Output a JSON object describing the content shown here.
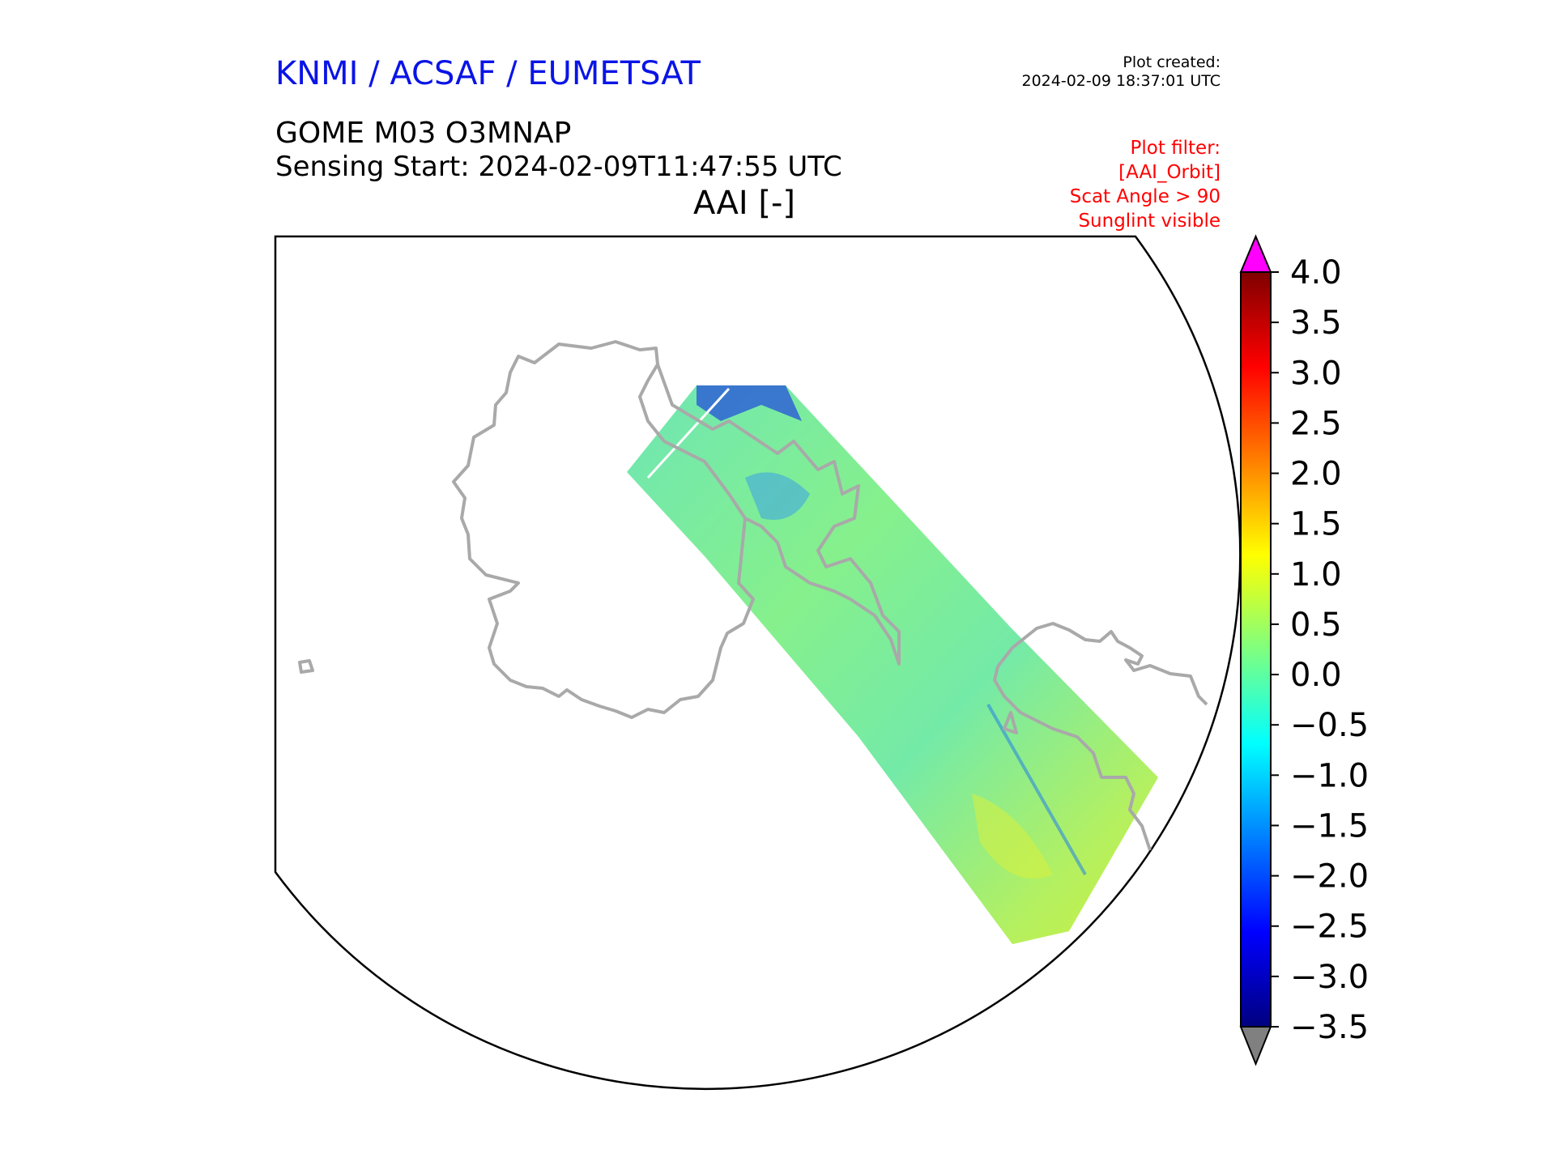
{
  "header": {
    "organization": "KNMI / ACSAF / EUMETSAT",
    "organization_color": "#0a14e6",
    "plot_created_label": "Plot created:",
    "plot_created_time": "2024-02-09 18:37:01 UTC",
    "product": "GOME M03 O3MNAP",
    "sensing_start": "Sensing Start: 2024-02-09T11:47:55 UTC",
    "quantity": "AAI [-]"
  },
  "plot_filter": {
    "color": "#ff0000",
    "lines": [
      "Plot filter:",
      "[AAI_Orbit]",
      "Scat Angle > 90",
      "Sunglint visible"
    ]
  },
  "colorbar": {
    "min": -3.5,
    "max": 4.0,
    "ticks": [
      {
        "value": 4.0,
        "label": "4.0"
      },
      {
        "value": 3.5,
        "label": "3.5"
      },
      {
        "value": 3.0,
        "label": "3.0"
      },
      {
        "value": 2.5,
        "label": "2.5"
      },
      {
        "value": 2.0,
        "label": "2.0"
      },
      {
        "value": 1.5,
        "label": "1.5"
      },
      {
        "value": 1.0,
        "label": "1.0"
      },
      {
        "value": 0.5,
        "label": "0.5"
      },
      {
        "value": 0.0,
        "label": "0.0"
      },
      {
        "value": -0.5,
        "label": "−0.5"
      },
      {
        "value": -1.0,
        "label": "−1.0"
      },
      {
        "value": -1.5,
        "label": "−1.5"
      },
      {
        "value": -2.0,
        "label": "−2.0"
      },
      {
        "value": -2.5,
        "label": "−2.5"
      },
      {
        "value": -3.0,
        "label": "−3.0"
      },
      {
        "value": -3.5,
        "label": "−3.5"
      }
    ],
    "colormap_stops": [
      "#00007f",
      "#0000ff",
      "#007fff",
      "#00ffff",
      "#7fff7f",
      "#ffff00",
      "#ff7f00",
      "#ff0000",
      "#7f0000"
    ],
    "over_color": "#ff00ff",
    "under_color": "#808080"
  },
  "map": {
    "coastline_color": "#a9a9a9",
    "swath_dominant_color": "#7ff0a0"
  }
}
